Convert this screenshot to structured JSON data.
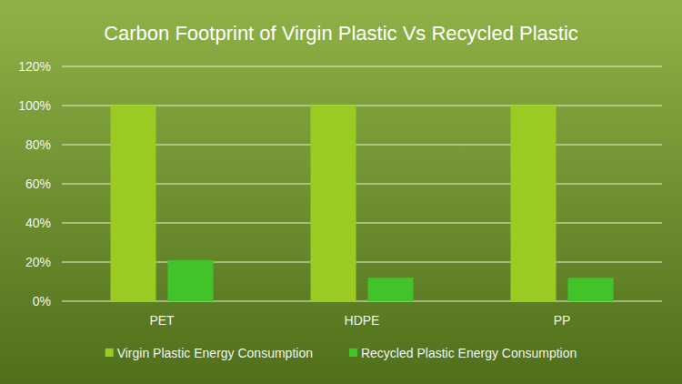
{
  "chart_data": {
    "type": "bar",
    "title": "Carbon Footprint of Virgin Plastic Vs Recycled Plastic",
    "categories": [
      "PET",
      "HDPE",
      "PP"
    ],
    "series": [
      {
        "name": "Virgin Plastic Energy Consumption",
        "color": "#9acb23",
        "values": [
          100,
          100,
          100
        ]
      },
      {
        "name": "Recycled Plastic Energy Consumption",
        "color": "#41c42a",
        "values": [
          21,
          12,
          12
        ]
      }
    ],
    "ylim": [
      0,
      120
    ],
    "yticks": [
      {
        "value": 0,
        "label": "0%"
      },
      {
        "value": 20,
        "label": "20%"
      },
      {
        "value": 40,
        "label": "40%"
      },
      {
        "value": 60,
        "label": "60%"
      },
      {
        "value": 80,
        "label": "80%"
      },
      {
        "value": 100,
        "label": "100%"
      },
      {
        "value": 120,
        "label": "120%"
      }
    ],
    "grid": true,
    "legend": "bottom"
  }
}
